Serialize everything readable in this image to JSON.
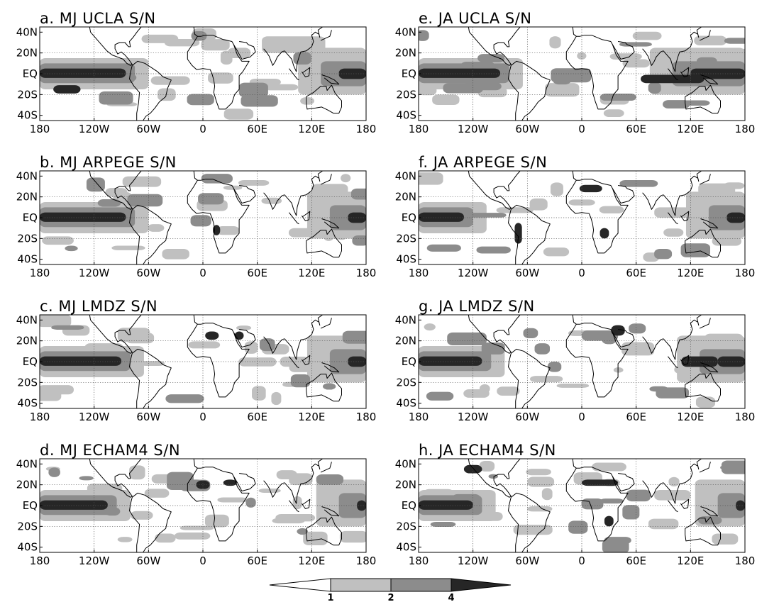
{
  "panels": [
    {
      "id": "a",
      "title": "a. MJ UCLA S/N"
    },
    {
      "id": "b",
      "title": "b. MJ ARPEGE S/N"
    },
    {
      "id": "c",
      "title": "c. MJ LMDZ S/N"
    },
    {
      "id": "d",
      "title": "d. MJ ECHAM4 S/N"
    },
    {
      "id": "e",
      "title": "e. JA UCLA S/N"
    },
    {
      "id": "f",
      "title": "f. JA ARPEGE S/N"
    },
    {
      "id": "g",
      "title": "g. JA LMDZ S/N"
    },
    {
      "id": "h",
      "title": "h. JA ECHAM4 S/N"
    }
  ],
  "lon_ticks": [
    "180",
    "120W",
    "60W",
    "0",
    "60E",
    "120E",
    "180"
  ],
  "lat_ticks": [
    "40N",
    "20N",
    "EQ",
    "20S",
    "40S"
  ],
  "colorbar": {
    "levels": [
      "1",
      "2",
      "4"
    ],
    "colors": [
      "#ffffff",
      "#c0c0c0",
      "#8c8c8c",
      "#262626"
    ]
  }
}
